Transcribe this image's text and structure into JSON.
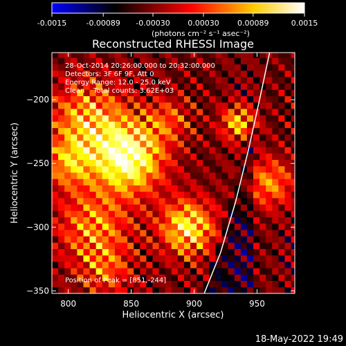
{
  "colorbar": {
    "tick_labels": [
      "-0.0015",
      "-0.00089",
      "-0.00030",
      "0.00030",
      "0.00089",
      "0.0015"
    ],
    "tick_values": [
      -0.0015,
      -0.00089,
      -0.0003,
      0.0003,
      0.00089,
      0.0015
    ],
    "range": [
      -0.0015,
      0.0015
    ],
    "units_label": "(photons cm⁻² s⁻¹ asec⁻²)",
    "colors": [
      "#0000ff",
      "#000000",
      "#ff0000",
      "#ffff00",
      "#ffffff"
    ]
  },
  "chart_data": {
    "type": "heatmap",
    "title": "Reconstructed RHESSI Image",
    "xlabel": "Heliocentric X (arcsec)",
    "ylabel": "Heliocentric Y (arcsec)",
    "xlim": [
      787,
      980
    ],
    "ylim": [
      -352,
      -163
    ],
    "x_ticks": [
      800,
      850,
      900,
      950
    ],
    "x_tick_labels": [
      "800",
      "850",
      "900",
      "950"
    ],
    "y_ticks": [
      -200,
      -250,
      -300,
      -350
    ],
    "y_tick_labels": [
      "−200",
      "−250",
      "−300",
      "−350"
    ],
    "info_lines": [
      "28-Oct-2014 20:26:00.000 to 20:32:00.000",
      "Detectors: 3F 6F 9F, Att 0",
      "Energy Range: 12.0 - 25.0 keV",
      "Clean    Total counts: 3.62E+03"
    ],
    "peak_label": "Position of Peak = [851,-244]",
    "peak": [
      851,
      -244
    ],
    "limb_curve": [
      [
        908,
        -352
      ],
      [
        921,
        -320
      ],
      [
        933,
        -280
      ],
      [
        943,
        -240
      ],
      [
        952,
        -200
      ],
      [
        960,
        -163
      ]
    ],
    "limb_color": "#ffffff"
  },
  "footer": {
    "timestamp": "18-May-2022 19:49"
  }
}
